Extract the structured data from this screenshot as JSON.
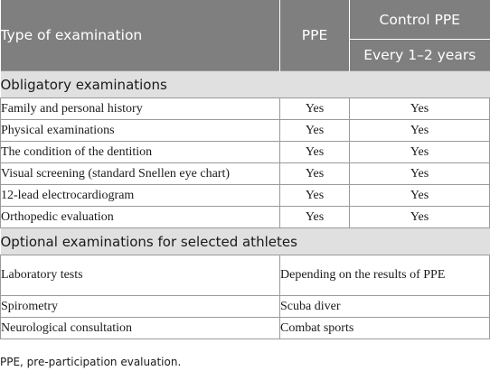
{
  "header": {
    "type": "Type of examination",
    "ppe": "PPE",
    "control": "Control PPE",
    "control_sub": "Every 1–2 years"
  },
  "sections": [
    {
      "title": "Obligatory examinations",
      "rows": [
        {
          "exam": "Family and personal history",
          "ppe": "Yes",
          "control": "Yes"
        },
        {
          "exam": "Physical examinations",
          "ppe": "Yes",
          "control": "Yes"
        },
        {
          "exam": "The condition of the dentition",
          "ppe": "Yes",
          "control": "Yes"
        },
        {
          "exam": "Visual screening (standard Snellen eye chart)",
          "ppe": "Yes",
          "control": "Yes"
        },
        {
          "exam": "12-lead electrocardiogram",
          "ppe": "Yes",
          "control": "Yes"
        },
        {
          "exam": "Orthopedic evaluation",
          "ppe": "Yes",
          "control": "Yes"
        }
      ]
    },
    {
      "title": "Optional examinations for selected athletes",
      "rows": [
        {
          "exam": "Laboratory tests",
          "note": "Depending on the results of PPE"
        },
        {
          "exam": "Spirometry",
          "note": "Scuba diver"
        },
        {
          "exam": "Neurological consultation",
          "note": "Combat sports"
        }
      ]
    }
  ],
  "footnote": "PPE, pre-participation evaluation."
}
